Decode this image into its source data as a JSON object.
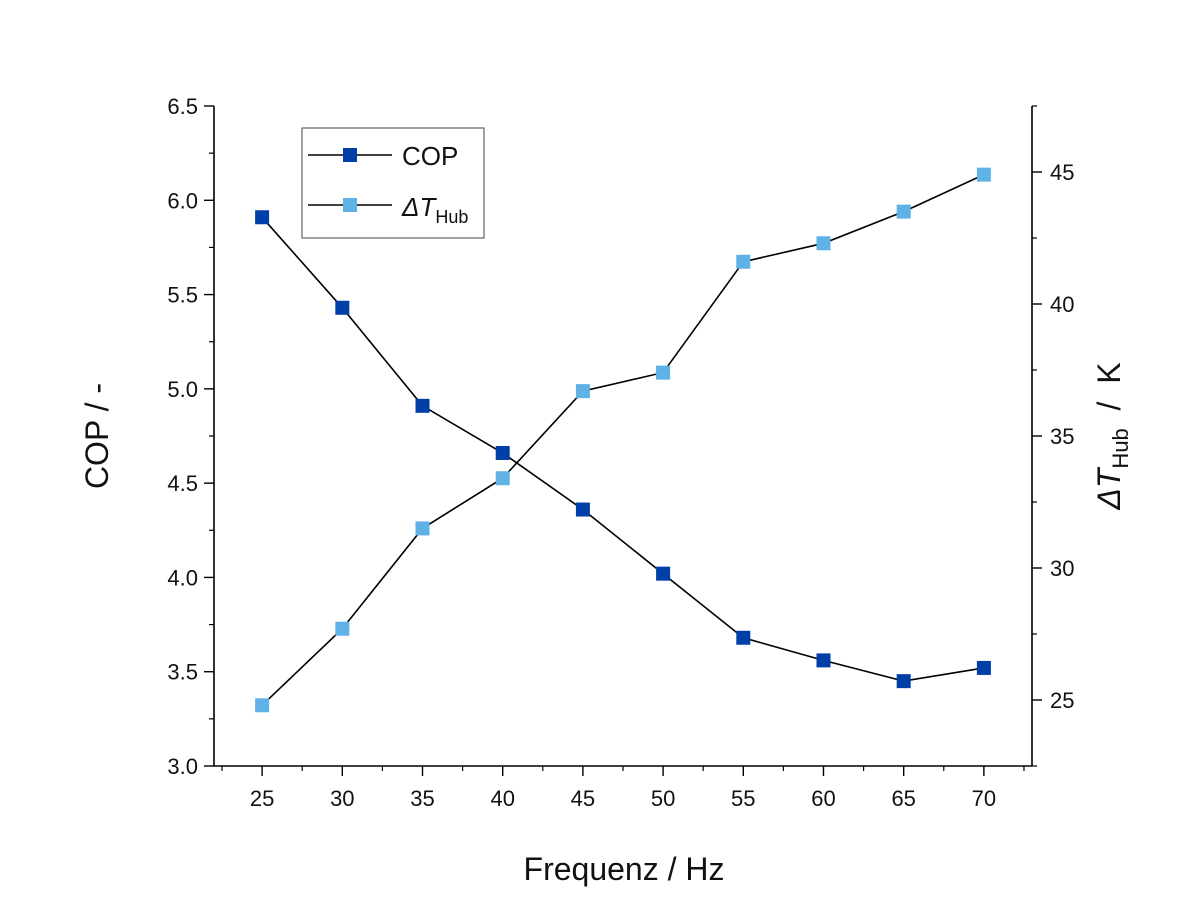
{
  "chart_data": {
    "type": "line",
    "title": "",
    "xlabel": "Frequenz  /  Hz",
    "ylabel_left": "COP  /  -",
    "ylabel_right": {
      "prefix": "ΔT",
      "subscript": "Hub",
      "suffix": "  /  K"
    },
    "xlim": [
      22,
      73
    ],
    "ylim_left": [
      3.0,
      6.5
    ],
    "ylim_right": [
      22.5,
      47.5
    ],
    "x_ticks": [
      25,
      30,
      35,
      40,
      45,
      50,
      55,
      60,
      65,
      70
    ],
    "y_ticks_left": [
      "3.0",
      "3.5",
      "4.0",
      "4.5",
      "5.0",
      "5.5",
      "6.0",
      "6.5"
    ],
    "y_ticks_right": [
      "25",
      "30",
      "35",
      "40",
      "45"
    ],
    "grid": false,
    "legend_position": "top-left",
    "x": [
      25,
      30,
      35,
      40,
      45,
      50,
      55,
      60,
      65,
      70
    ],
    "series": [
      {
        "name": "COP",
        "axis": "left",
        "color": "#003fa8",
        "values": [
          5.91,
          5.43,
          4.91,
          4.66,
          4.36,
          4.02,
          3.68,
          3.56,
          3.45,
          3.52
        ]
      },
      {
        "name": {
          "prefix": "ΔT",
          "subscript": "Hub"
        },
        "axis": "right",
        "color": "#5fb1e6",
        "values": [
          24.8,
          27.7,
          31.5,
          33.4,
          36.7,
          37.4,
          41.6,
          42.3,
          43.5,
          44.9
        ]
      }
    ]
  }
}
